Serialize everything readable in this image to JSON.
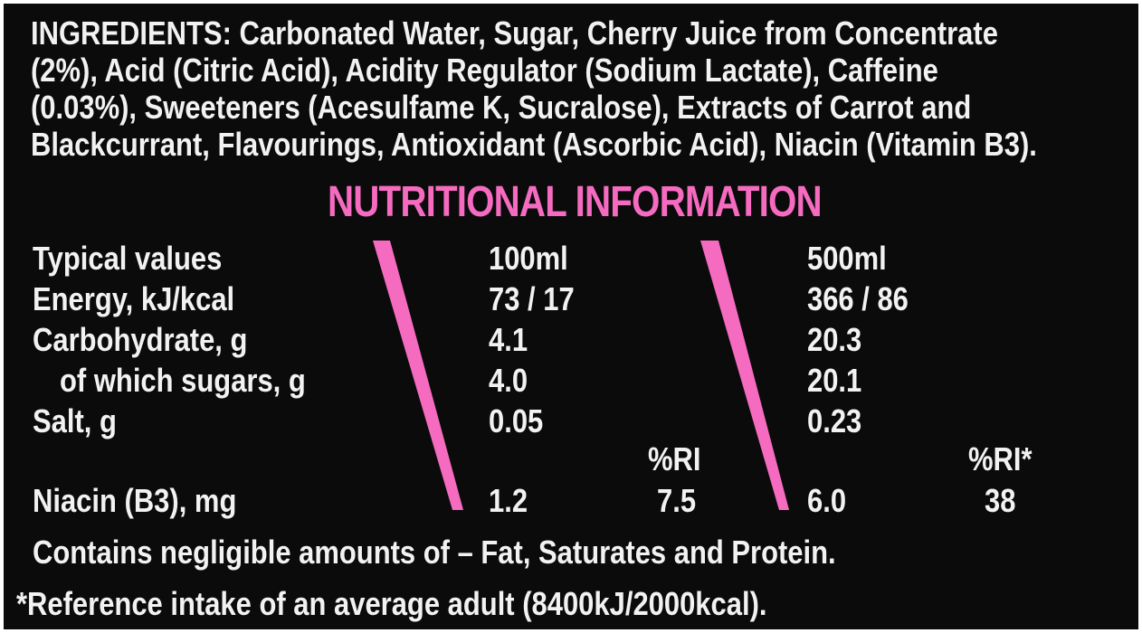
{
  "ingredients": {
    "lines": [
      "INGREDIENTS: Carbonated Water, Sugar, Cherry Juice from Concentrate",
      "(2%), Acid (Citric Acid), Acidity Regulator (Sodium Lactate), Caffeine",
      "(0.03%), Sweeteners (Acesulfame K, Sucralose), Extracts of Carrot and",
      "Blackcurrant, Flavourings, Antioxidant (Ascorbic Acid), Niacin (Vitamin B3)."
    ]
  },
  "nutrition": {
    "title": "NUTRITIONAL INFORMATION",
    "accent_color": "#f56bc0",
    "header": {
      "label": "Typical values",
      "col_100": "100ml",
      "col_500": "500ml"
    },
    "rows": [
      {
        "label": "Energy, kJ/kcal",
        "v100": "73 / 17",
        "v500": "366 / 86"
      },
      {
        "label": "Carbohydrate, g",
        "v100": "4.1",
        "v500": "20.3"
      },
      {
        "label": "of which sugars, g",
        "v100": "4.0",
        "v500": "20.1"
      },
      {
        "label": "Salt, g",
        "v100": "0.05",
        "v500": "0.23"
      }
    ],
    "ri_header_100": "%RI",
    "ri_header_500": "%RI*",
    "niacin": {
      "label": "Niacin (B3), mg",
      "v100": "1.2",
      "ri100": "7.5",
      "v500": "6.0",
      "ri500": "38"
    },
    "negligible": "Contains negligible amounts of – Fat, Saturates and Protein.",
    "footnote": "*Reference intake of an average adult (8400kJ/2000kcal)."
  }
}
